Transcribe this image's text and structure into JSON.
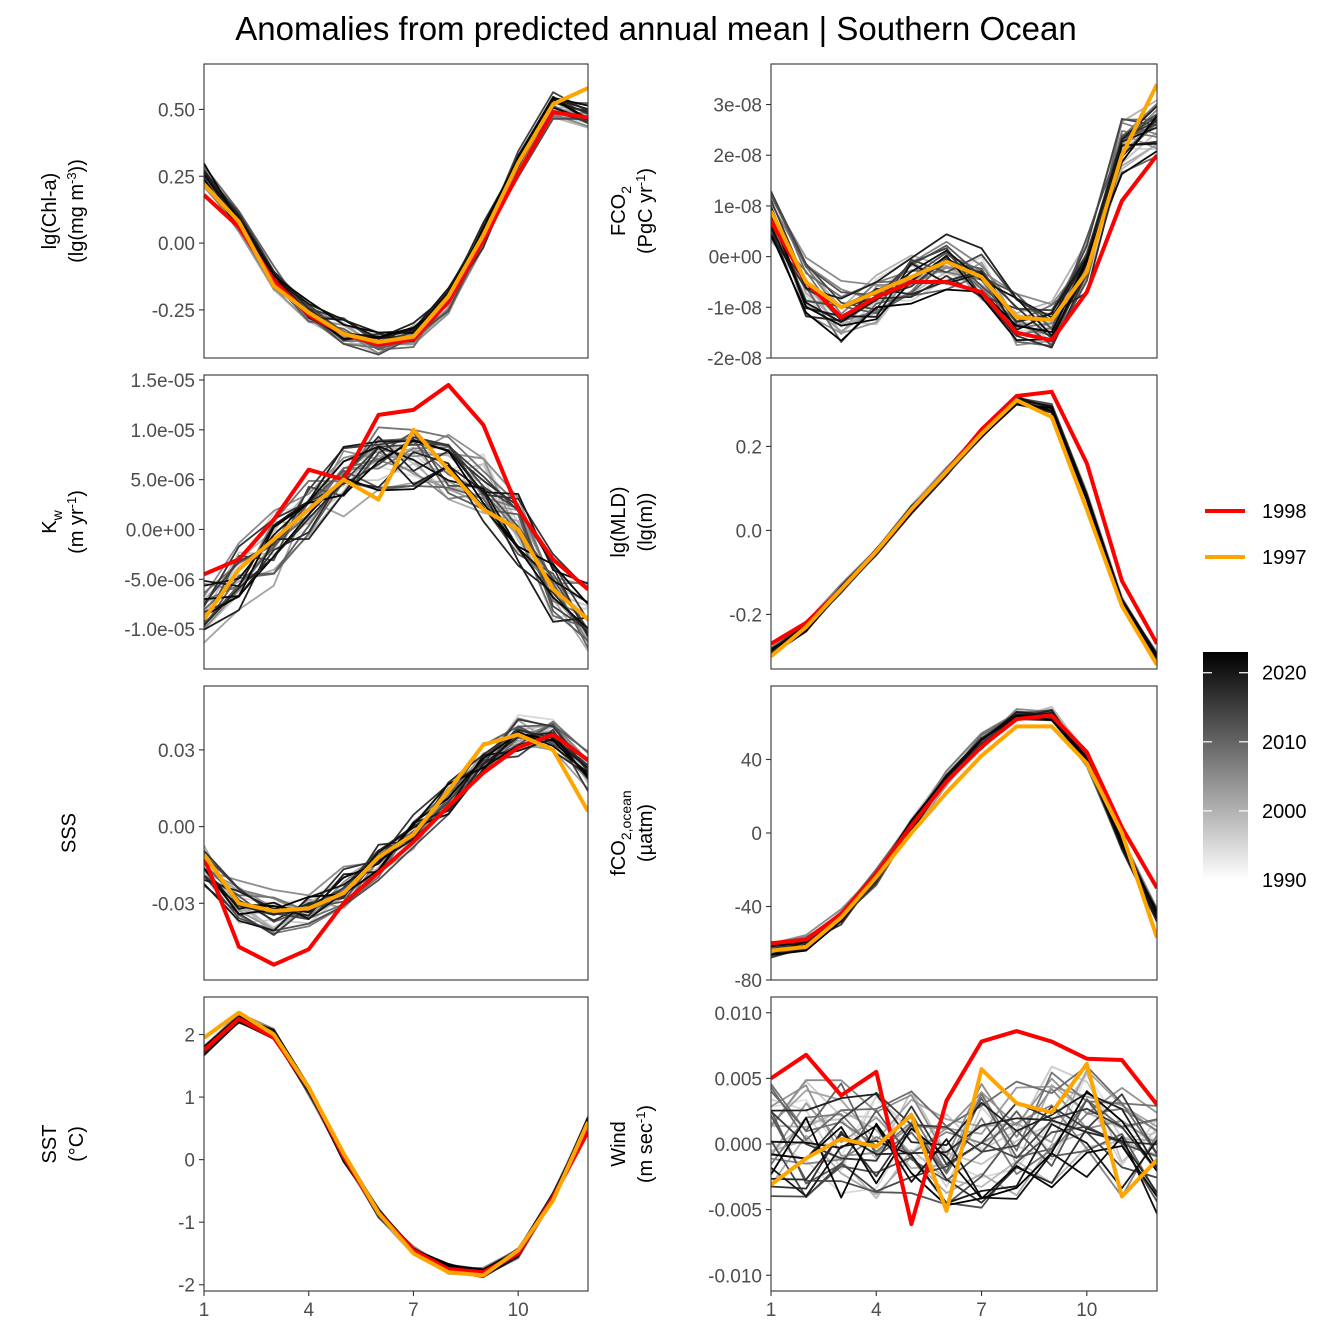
{
  "chart_data": {
    "type": "line",
    "title": "Anomalies from predicted annual mean | Southern Ocean",
    "x_ticks": [
      1,
      4,
      7,
      10
    ],
    "xlim": [
      1,
      12
    ],
    "legend": {
      "highlight": [
        {
          "name": "1998",
          "color": "#ff0000"
        },
        {
          "name": "1997",
          "color": "#ffa500"
        }
      ],
      "colorbar_ticks": [
        2020,
        2010,
        2000,
        1990
      ],
      "colorbar_range": [
        1990,
        2023
      ],
      "colorbar_colors": [
        "#ffffff",
        "#000000"
      ]
    },
    "background_series": {
      "description_years": [
        1990,
        2023
      ],
      "color_low": "#ffffff",
      "color_high": "#000000"
    },
    "panels": [
      {
        "id": "chl",
        "ylabel_main": "lg(Chl-a)",
        "ylabel_unit": "(lg(mg m",
        "ylabel_sup": "-3",
        "ylabel_tail": "))",
        "ylim": [
          -0.43,
          0.67
        ],
        "yticks": [
          0.5,
          0.25,
          0.0,
          -0.25
        ],
        "ytick_labels": [
          "0.50",
          "0.25",
          "0.00",
          "-0.25"
        ],
        "series": [
          {
            "name": "1998",
            "values": [
              0.18,
              0.06,
              -0.14,
              -0.27,
              -0.34,
              -0.38,
              -0.36,
              -0.22,
              0.01,
              0.26,
              0.49,
              0.47
            ]
          },
          {
            "name": "1997",
            "values": [
              0.22,
              0.08,
              -0.16,
              -0.26,
              -0.34,
              -0.37,
              -0.35,
              -0.2,
              0.03,
              0.3,
              0.52,
              0.58
            ]
          }
        ],
        "base": [
          0.25,
          0.08,
          -0.13,
          -0.26,
          -0.33,
          -0.37,
          -0.35,
          -0.21,
          0.03,
          0.3,
          0.52,
          0.48
        ],
        "spread": 0.035
      },
      {
        "id": "fco2",
        "ylabel_main": "FCO",
        "ylabel_sub": "2",
        "ylabel_unit": "(PgC yr",
        "ylabel_sup": "-1",
        "ylabel_tail": ")",
        "ylim": [
          -2e-08,
          3.8e-08
        ],
        "yticks": [
          3e-08,
          2e-08,
          1e-08,
          0,
          -1e-08,
          -2e-08
        ],
        "ytick_labels": [
          "3e-08",
          "2e-08",
          "1e-08",
          "0e+00",
          "-1e-08",
          "-2e-08"
        ],
        "series": [
          {
            "name": "1998",
            "values": [
              7e-09,
              -5e-09,
              -1.2e-08,
              -8e-09,
              -5e-09,
              -5e-09,
              -7e-09,
              -1.5e-08,
              -1.65e-08,
              -7e-09,
              1.1e-08,
              2e-08
            ]
          },
          {
            "name": "1997",
            "values": [
              9e-09,
              -5e-09,
              -1e-08,
              -7e-09,
              -4e-09,
              -1e-09,
              -4e-09,
              -1.2e-08,
              -1.25e-08,
              -3e-09,
              2e-08,
              3.4e-08
            ]
          }
        ],
        "base": [
          8e-09,
          -6e-09,
          -1.1e-08,
          -8e-09,
          -4e-09,
          -1e-09,
          -4e-09,
          -1.2e-08,
          -1.3e-08,
          -2e-09,
          2.2e-08,
          2.6e-08
        ],
        "spread": 4e-09
      },
      {
        "id": "kw",
        "ylabel_main": "K",
        "ylabel_sub": "w",
        "ylabel_unit": "(m yr",
        "ylabel_sup": "-1",
        "ylabel_tail": ")",
        "ylim": [
          -1.4e-05,
          1.55e-05
        ],
        "yticks": [
          1.5e-05,
          1e-05,
          5e-06,
          0,
          -5e-06,
          -1e-05
        ],
        "ytick_labels": [
          "1.5e-05",
          "1.0e-05",
          "5.0e-06",
          "0.0e+00",
          "-5.0e-06",
          "-1.0e-05"
        ],
        "series": [
          {
            "name": "1998",
            "values": [
              -4.5e-06,
              -3e-06,
              1e-06,
              6e-06,
              5e-06,
              1.15e-05,
              1.2e-05,
              1.45e-05,
              1.05e-05,
              2e-06,
              -3e-06,
              -6e-06
            ]
          },
          {
            "name": "1997",
            "values": [
              -9e-06,
              -4e-06,
              -1e-06,
              2e-06,
              5e-06,
              3e-06,
              1e-05,
              6e-06,
              2e-06,
              0,
              -6e-06,
              -9e-06
            ]
          }
        ],
        "base": [
          -8e-06,
          -5e-06,
          -2e-06,
          2e-06,
          5e-06,
          7e-06,
          7e-06,
          6e-06,
          4e-06,
          0,
          -6e-06,
          -9e-06
        ],
        "spread": 2.5e-06
      },
      {
        "id": "mld",
        "ylabel_main": "lg(MLD)",
        "ylabel_unit": "(lg(m))",
        "ylim": [
          -0.33,
          0.37
        ],
        "yticks": [
          0.2,
          0.0,
          -0.2
        ],
        "ytick_labels": [
          "0.2",
          "0.0",
          "-0.2"
        ],
        "series": [
          {
            "name": "1998",
            "values": [
              -0.27,
              -0.22,
              -0.14,
              -0.05,
              0.05,
              0.14,
              0.24,
              0.32,
              0.33,
              0.16,
              -0.12,
              -0.27
            ]
          },
          {
            "name": "1997",
            "values": [
              -0.3,
              -0.23,
              -0.14,
              -0.05,
              0.05,
              0.14,
              0.23,
              0.31,
              0.27,
              0.05,
              -0.18,
              -0.32
            ]
          }
        ],
        "base": [
          -0.29,
          -0.23,
          -0.14,
          -0.05,
          0.05,
          0.14,
          0.23,
          0.31,
          0.29,
          0.08,
          -0.17,
          -0.3
        ],
        "spread": 0.008
      },
      {
        "id": "sss",
        "ylabel_main": "SSS",
        "ylim": [
          -0.06,
          0.055
        ],
        "yticks": [
          0.03,
          0.0,
          -0.03
        ],
        "ytick_labels": [
          "0.03",
          "0.00",
          "-0.03"
        ],
        "series": [
          {
            "name": "1998",
            "values": [
              -0.012,
              -0.047,
              -0.054,
              -0.048,
              -0.03,
              -0.018,
              -0.006,
              0.008,
              0.021,
              0.031,
              0.036,
              0.026
            ]
          },
          {
            "name": "1997",
            "values": [
              -0.011,
              -0.03,
              -0.033,
              -0.032,
              -0.026,
              -0.012,
              -0.003,
              0.014,
              0.032,
              0.036,
              0.03,
              0.006
            ]
          }
        ],
        "base": [
          -0.015,
          -0.03,
          -0.034,
          -0.031,
          -0.024,
          -0.013,
          -0.002,
          0.012,
          0.026,
          0.036,
          0.037,
          0.022
        ],
        "spread": 0.006
      },
      {
        "id": "fco2ocean",
        "ylabel_main": "fCO",
        "ylabel_sub": "2,ocean",
        "ylabel_unit": "(µatm)",
        "ylim": [
          -80,
          80
        ],
        "yticks": [
          40,
          0,
          -40,
          -80
        ],
        "ytick_labels": [
          "40",
          "0",
          "-40",
          "-80"
        ],
        "series": [
          {
            "name": "1998",
            "values": [
              -60,
              -58,
              -44,
              -22,
              4,
              28,
              47,
              62,
              64,
              44,
              3,
              -30
            ]
          },
          {
            "name": "1997",
            "values": [
              -64,
              -62,
              -46,
              -24,
              0,
              22,
              42,
              58,
              58,
              38,
              0,
              -57
            ]
          }
        ],
        "base": [
          -64,
          -60,
          -46,
          -24,
          4,
          30,
          50,
          64,
          65,
          40,
          -6,
          -45
        ],
        "spread": 3
      },
      {
        "id": "sst",
        "ylabel_main": "SST",
        "ylabel_unit": "(°C)",
        "ylim": [
          -2.1,
          2.6
        ],
        "yticks": [
          2,
          1,
          0,
          -1,
          -2
        ],
        "ytick_labels": [
          "2",
          "1",
          "0",
          "-1",
          "-2"
        ],
        "series": [
          {
            "name": "1998",
            "values": [
              1.75,
              2.25,
              1.95,
              1.15,
              0.05,
              -0.85,
              -1.45,
              -1.75,
              -1.8,
              -1.5,
              -0.6,
              0.45
            ]
          },
          {
            "name": "1997",
            "values": [
              1.95,
              2.35,
              2.0,
              1.15,
              0.1,
              -0.85,
              -1.5,
              -1.8,
              -1.85,
              -1.45,
              -0.65,
              0.6
            ]
          }
        ],
        "base": [
          1.75,
          2.25,
          2.0,
          1.1,
          0.05,
          -0.85,
          -1.45,
          -1.75,
          -1.8,
          -1.5,
          -0.6,
          0.6
        ],
        "spread": 0.06
      },
      {
        "id": "wind",
        "ylabel_main": "Wind",
        "ylabel_unit": "(m sec",
        "ylabel_sup": "-1",
        "ylabel_tail": ")",
        "ylim": [
          -0.0112,
          0.0112
        ],
        "yticks": [
          0.01,
          0.005,
          0.0,
          -0.005,
          -0.01
        ],
        "ytick_labels": [
          "0.010",
          "0.005",
          "0.000",
          "-0.005",
          "-0.010"
        ],
        "series": [
          {
            "name": "1998",
            "values": [
              0.005,
              0.0068,
              0.0037,
              0.0055,
              -0.0061,
              0.0033,
              0.0078,
              0.0086,
              0.0078,
              0.0065,
              0.0064,
              0.003
            ]
          },
          {
            "name": "1997",
            "values": [
              -0.0031,
              -0.0011,
              0.0004,
              -0.0002,
              0.0022,
              -0.0051,
              0.0057,
              0.0031,
              0.0024,
              0.0061,
              -0.004,
              -0.0012
            ]
          }
        ],
        "base": [
          0.0,
          0.0,
          0.0,
          0.0,
          0.0,
          -0.001,
          0.0,
          0.0,
          0.001,
          0.002,
          0.0,
          -0.001
        ],
        "spread": 0.0032
      }
    ]
  }
}
